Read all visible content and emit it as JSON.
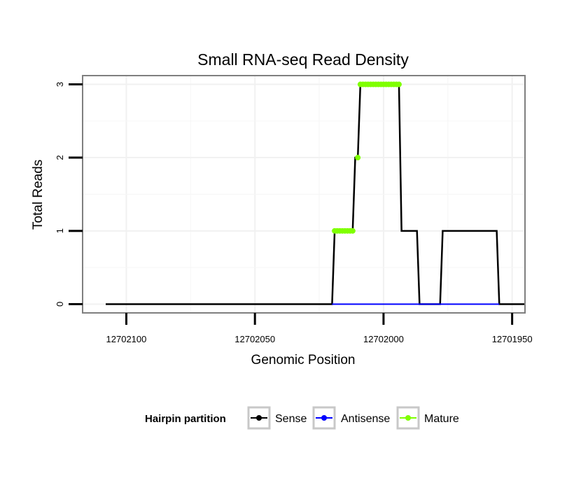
{
  "chart_data": {
    "type": "line",
    "title": "Small RNA-seq Read Density",
    "xlabel": "Genomic Position",
    "ylabel": "Total Reads",
    "x_reversed": true,
    "xlim": [
      12702117,
      12701945
    ],
    "ylim": [
      -0.12,
      3.12
    ],
    "x_ticks": [
      12702100,
      12702050,
      12702000,
      12701950
    ],
    "x_tick_labels": [
      "12702100",
      "12702050",
      "12702000",
      "12701950"
    ],
    "y_ticks": [
      0,
      1,
      2,
      3
    ],
    "y_tick_labels": [
      "0",
      "1",
      "2",
      "3"
    ],
    "grid": true,
    "legend": {
      "title": "Hairpin partition",
      "position": "bottom",
      "entries": [
        {
          "name": "Sense",
          "color": "#000000"
        },
        {
          "name": "Antisense",
          "color": "#0000ff"
        },
        {
          "name": "Mature",
          "color": "#7fff00"
        }
      ]
    },
    "series": [
      {
        "name": "Sense",
        "color": "#000000",
        "points": [
          [
            12702108,
            0
          ],
          [
            12702020,
            0
          ],
          [
            12702019,
            1
          ],
          [
            12702012,
            1
          ],
          [
            12702011,
            2
          ],
          [
            12702010,
            2
          ],
          [
            12702009,
            3
          ],
          [
            12701994,
            3
          ],
          [
            12701993,
            1
          ],
          [
            12701987,
            1
          ],
          [
            12701986,
            0
          ],
          [
            12701978,
            0
          ],
          [
            12701977,
            1
          ],
          [
            12701956,
            1
          ],
          [
            12701955,
            0
          ],
          [
            12701945,
            0
          ]
        ]
      },
      {
        "name": "Antisense",
        "color": "#0000ff",
        "points": [
          [
            12702020,
            0
          ],
          [
            12701955,
            0
          ]
        ]
      },
      {
        "name": "Mature",
        "color": "#7fff00",
        "points": [
          [
            12702019,
            1
          ],
          [
            12702018,
            1
          ],
          [
            12702017,
            1
          ],
          [
            12702016,
            1
          ],
          [
            12702015,
            1
          ],
          [
            12702014,
            1
          ],
          [
            12702013,
            1
          ],
          [
            12702012,
            1
          ],
          [
            12702010,
            2
          ],
          [
            12702009,
            3
          ],
          [
            12702008,
            3
          ],
          [
            12702007,
            3
          ],
          [
            12702006,
            3
          ],
          [
            12702005,
            3
          ],
          [
            12702004,
            3
          ],
          [
            12702003,
            3
          ],
          [
            12702002,
            3
          ],
          [
            12702001,
            3
          ],
          [
            12702000,
            3
          ],
          [
            12701999,
            3
          ],
          [
            12701998,
            3
          ],
          [
            12701997,
            3
          ],
          [
            12701996,
            3
          ],
          [
            12701995,
            3
          ],
          [
            12701994,
            3
          ]
        ]
      }
    ]
  }
}
